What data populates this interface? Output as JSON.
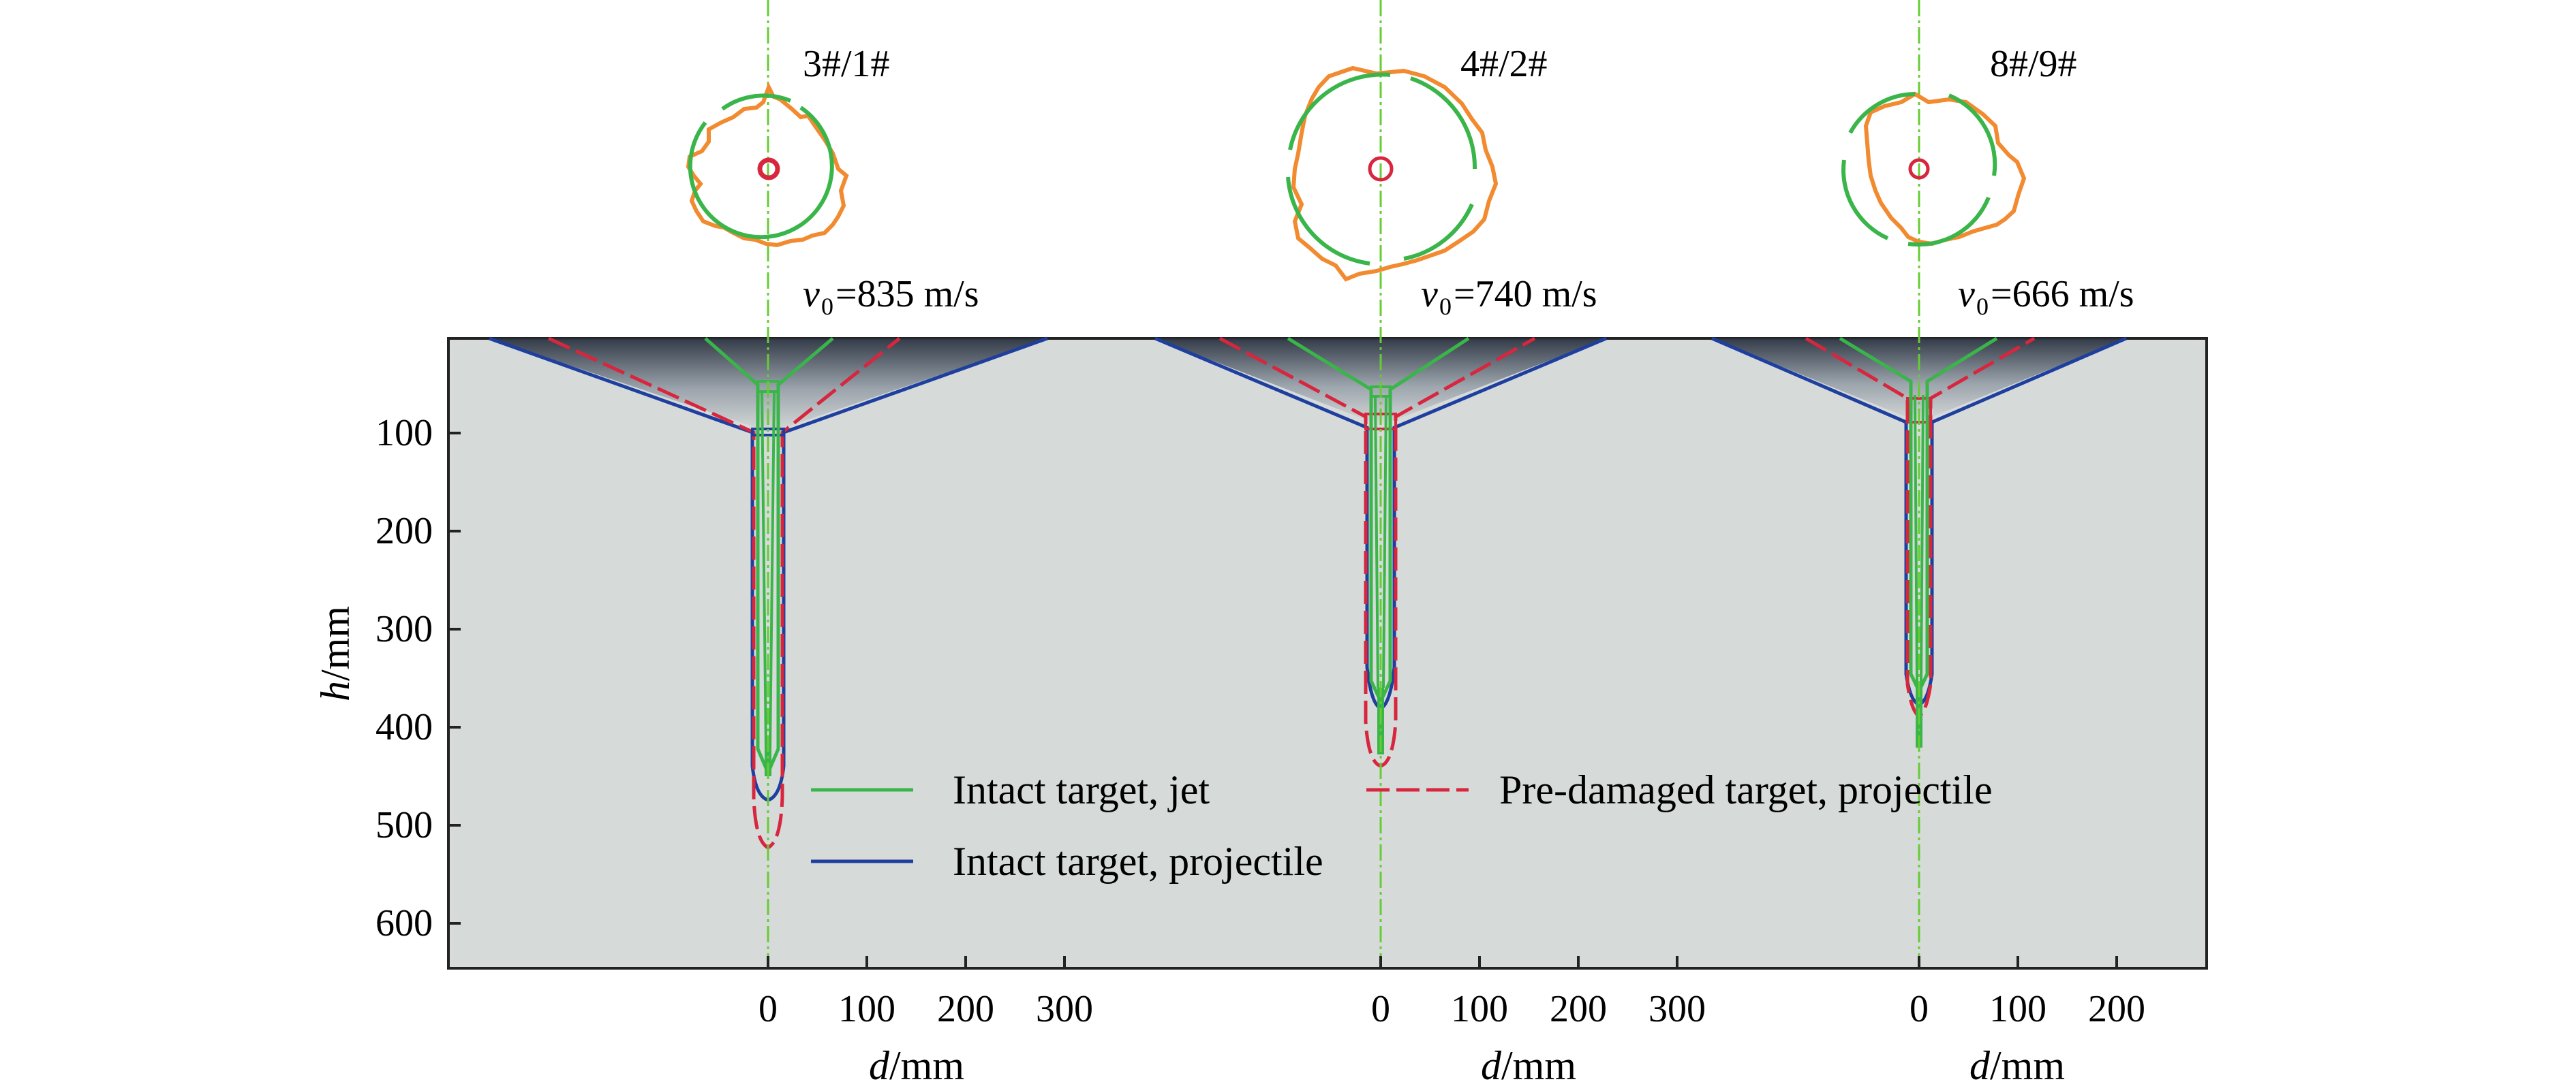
{
  "figure": {
    "ylabel": {
      "italic": "h",
      "rest": "/mm"
    },
    "xlabel": {
      "italic": "d",
      "rest": "/mm"
    },
    "y_ticks": [
      "100",
      "200",
      "300",
      "400",
      "500",
      "600"
    ],
    "colors": {
      "target": "#d6dbd9",
      "jet": "#3ab54a",
      "intact_projectile": "#1f3f9f",
      "pre_damaged_projectile": "#d7263d",
      "hole_contour": "#f28a30",
      "centerline": "#66cc33"
    }
  },
  "cases": [
    {
      "label": "3#/1#",
      "velocity_label": "=835 m/s",
      "x_ticks": [
        "0",
        "100",
        "200",
        "300"
      ],
      "jet_depth": 455,
      "intact_projectile_depth": 475,
      "pre_damaged_projectile_depth": 525
    },
    {
      "label": "4#/2#",
      "velocity_label": "=740 m/s",
      "x_ticks": [
        "0",
        "100",
        "200",
        "300"
      ],
      "jet_depth": 430,
      "intact_projectile_depth": 378,
      "pre_damaged_projectile_depth": 438
    },
    {
      "label": "8#/9#",
      "velocity_label": "=666 m/s",
      "x_ticks": [
        "0",
        "100",
        "200"
      ],
      "jet_depth": 420,
      "intact_projectile_depth": 375,
      "pre_damaged_projectile_depth": 390
    }
  ],
  "legend": {
    "jet": "Intact target, jet",
    "pre_damaged_projectile": "Pre-damaged target, projectile",
    "intact_projectile": "Intact target, projectile"
  }
}
